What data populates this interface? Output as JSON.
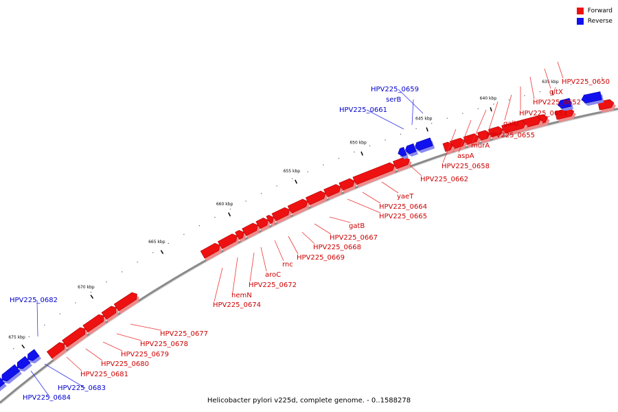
{
  "legend": {
    "forward_label": "Forward",
    "reverse_label": "Reverse",
    "forward_color": "#ee1111",
    "reverse_color": "#1111ee"
  },
  "caption": "Helicobacter pylori v225d, complete genome. - 0..1588278",
  "colors": {
    "backbone": "#8a8a8a",
    "tick": "#000000",
    "label_forward": "#cc0000",
    "label_reverse": "#0000cc"
  },
  "ticks": [
    "635 kbp",
    "640 kbp",
    "645 kbp",
    "650 kbp",
    "655 kbp",
    "660 kbp",
    "665 kbp",
    "670 kbp",
    "675 kbp"
  ],
  "forward_gene_labels": [
    "HPV225_0650",
    "gltX",
    "HPV225_0652",
    "HPV225_0653",
    "galU",
    "HPV225_0655",
    "murA",
    "aspA",
    "HPV225_0658",
    "HPV225_0662",
    "yaeT",
    "HPV225_0664",
    "HPV225_0665",
    "gatB",
    "HPV225_0667",
    "HPV225_0668",
    "HPV225_0669",
    "rnc",
    "aroC",
    "HPV225_0672",
    "hemN",
    "HPV225_0674",
    "HPV225_0677",
    "HPV225_0678",
    "HPV225_0679",
    "HPV225_0680",
    "HPV225_0681"
  ],
  "reverse_gene_labels": [
    "HPV225_0659",
    "serB",
    "HPV225_0661",
    "HPV225_0682",
    "HPV225_0683",
    "HPV225_0684"
  ]
}
